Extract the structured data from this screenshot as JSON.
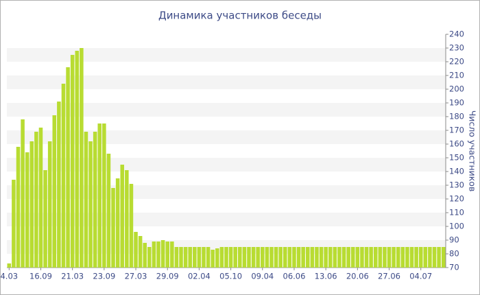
{
  "chart_data": {
    "type": "bar",
    "title": "Динамика участников беседы",
    "y_axis_label": "Число участников",
    "categories": [
      "4.03",
      null,
      null,
      null,
      null,
      null,
      null,
      "16.09",
      null,
      null,
      null,
      null,
      null,
      null,
      "21.03",
      null,
      null,
      null,
      null,
      null,
      null,
      "23.09",
      null,
      null,
      null,
      null,
      null,
      null,
      "27.03",
      null,
      null,
      null,
      null,
      null,
      null,
      "29.09",
      null,
      null,
      null,
      null,
      null,
      null,
      "02.04",
      null,
      null,
      null,
      null,
      null,
      null,
      "05.10",
      null,
      null,
      null,
      null,
      null,
      null,
      "09.04",
      null,
      null,
      null,
      null,
      null,
      null,
      "06.06",
      null,
      null,
      null,
      null,
      null,
      null,
      "13.06",
      null,
      null,
      null,
      null,
      null,
      null,
      "20.06",
      null,
      null,
      null,
      null,
      null,
      null,
      "27.06",
      null,
      null,
      null,
      null,
      null,
      null,
      "04.07",
      null,
      null,
      null,
      null,
      null
    ],
    "values": [
      73,
      134,
      158,
      178,
      154,
      162,
      169,
      172,
      141,
      162,
      181,
      191,
      204,
      216,
      225,
      228,
      230,
      169,
      162,
      169,
      175,
      175,
      153,
      128,
      135,
      145,
      141,
      131,
      96,
      93,
      88,
      85,
      89,
      89,
      90,
      89,
      89,
      85,
      85,
      85,
      85,
      85,
      85,
      85,
      85,
      83,
      84,
      85,
      85,
      85,
      85,
      85,
      85,
      85,
      85,
      85,
      85,
      85,
      85,
      85,
      85,
      85,
      85,
      85,
      85,
      85,
      85,
      85,
      85,
      85,
      85,
      85,
      85,
      85,
      85,
      85,
      85,
      85,
      85,
      85,
      85,
      85,
      85,
      85,
      85,
      85,
      85,
      85,
      85,
      85,
      85,
      85,
      85,
      85,
      85,
      85,
      85
    ],
    "color": "#b8dc32",
    "ylim": [
      70,
      240
    ],
    "yticks": [
      70,
      80,
      90,
      100,
      110,
      120,
      130,
      140,
      150,
      160,
      170,
      180,
      190,
      200,
      210,
      220,
      230,
      240
    ],
    "grid": true
  }
}
